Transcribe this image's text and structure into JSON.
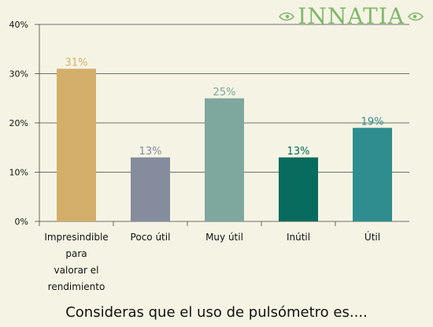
{
  "logo": {
    "text": "INNATIA"
  },
  "caption": "Consideras que el uso de pulsómetro es....",
  "chart_data": {
    "type": "bar",
    "categories": [
      [
        "Impresindible",
        "para",
        "valorar el",
        "rendimiento"
      ],
      [
        "Poco útil"
      ],
      [
        "Muy útil"
      ],
      [
        "Inútil"
      ],
      [
        "Útil"
      ]
    ],
    "values": [
      31,
      13,
      25,
      13,
      19
    ],
    "value_labels": [
      "31%",
      "13%",
      "25%",
      "13%",
      "19%"
    ],
    "colors": [
      "#d3ae6a",
      "#858c9e",
      "#7ea79d",
      "#076b5d",
      "#2f8d8f"
    ],
    "label_colors": [
      "#d3ae6a",
      "#858c9e",
      "#7ea79d",
      "#076b5d",
      "#2f8d8f"
    ],
    "yticks": [
      "0%",
      "10%",
      "20%",
      "30%",
      "40%"
    ],
    "ylim": [
      0,
      40
    ],
    "grid": true,
    "title": "",
    "xlabel": "",
    "ylabel": ""
  }
}
